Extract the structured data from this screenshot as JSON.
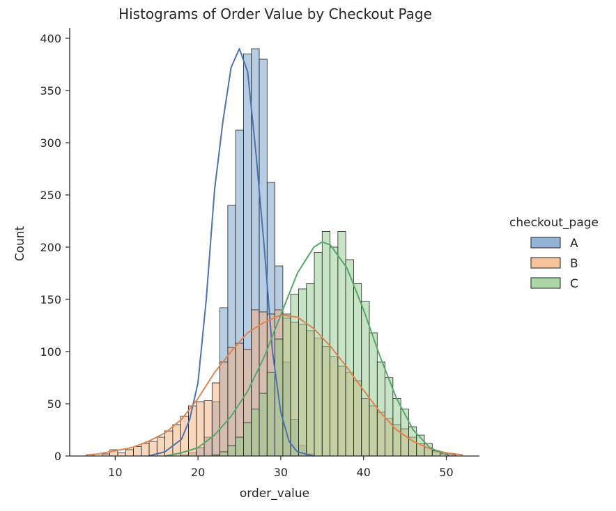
{
  "chart_data": {
    "type": "histogram",
    "title": "Histograms of Order Value by Checkout Page",
    "xlabel": "order_value",
    "ylabel": "Count",
    "xlim": [
      4.5,
      54
    ],
    "ylim": [
      0,
      410
    ],
    "x_ticks": [
      10,
      20,
      30,
      40,
      50
    ],
    "y_ticks": [
      0,
      50,
      100,
      150,
      200,
      250,
      300,
      350,
      400
    ],
    "bin_start": 6.5,
    "bin_width": 0.95,
    "grid": false,
    "legend": {
      "title": "checkout_page",
      "placement": "right",
      "entries": [
        "A",
        "B",
        "C"
      ]
    },
    "series": [
      {
        "name": "A",
        "color": "#4c72b0",
        "fill": "#6f9bc9",
        "opacity": 0.5,
        "counts": [
          0,
          0,
          0,
          0,
          0,
          0,
          0,
          0,
          0,
          0,
          0,
          0,
          1,
          3,
          8,
          18,
          52,
          142,
          240,
          312,
          385,
          390,
          380,
          262,
          182,
          90,
          35,
          10,
          2,
          0,
          0,
          0,
          0,
          0,
          0,
          0,
          0,
          0,
          0,
          0,
          0,
          0,
          0,
          0,
          0,
          0,
          0,
          0
        ],
        "kde_x": [
          14,
          16,
          18,
          19,
          20,
          21,
          22,
          23,
          24,
          25,
          26,
          27,
          28,
          29,
          30,
          31,
          32,
          34
        ],
        "kde_y": [
          0,
          4,
          16,
          35,
          70,
          150,
          255,
          320,
          372,
          390,
          368,
          290,
          200,
          100,
          42,
          14,
          4,
          0
        ]
      },
      {
        "name": "B",
        "color": "#dd8452",
        "fill": "#f3b07a",
        "opacity": 0.5,
        "counts": [
          1,
          0,
          2,
          6,
          3,
          6,
          9,
          12,
          14,
          18,
          24,
          30,
          38,
          48,
          52,
          53,
          70,
          90,
          104,
          108,
          102,
          140,
          138,
          136,
          140,
          132,
          128,
          126,
          120,
          113,
          105,
          95,
          86,
          80,
          72,
          55,
          48,
          42,
          36,
          30,
          26,
          18,
          12,
          8,
          4,
          2,
          1,
          0
        ],
        "kde_x": [
          6.5,
          8,
          10,
          12,
          14,
          16,
          18,
          20,
          22,
          24,
          26,
          28,
          30,
          32,
          34,
          36,
          38,
          40,
          42,
          44,
          46,
          48,
          50,
          52
        ],
        "kde_y": [
          1,
          2,
          5,
          8,
          14,
          22,
          35,
          55,
          80,
          100,
          118,
          128,
          135,
          133,
          122,
          105,
          85,
          63,
          42,
          25,
          14,
          7,
          3,
          1
        ]
      },
      {
        "name": "C",
        "color": "#55a868",
        "fill": "#8fc98a",
        "opacity": 0.5,
        "counts": [
          0,
          0,
          0,
          0,
          0,
          0,
          0,
          0,
          0,
          0,
          0,
          0,
          0,
          0,
          0,
          0,
          1,
          4,
          10,
          18,
          32,
          45,
          60,
          80,
          112,
          136,
          155,
          160,
          165,
          195,
          215,
          200,
          215,
          188,
          165,
          148,
          118,
          90,
          75,
          55,
          45,
          28,
          20,
          12,
          5,
          0,
          0,
          0
        ],
        "kde_x": [
          16,
          18,
          20,
          22,
          24,
          26,
          28,
          30,
          32,
          34,
          35,
          36,
          38,
          40,
          42,
          44,
          46,
          48,
          50
        ],
        "kde_y": [
          0,
          3,
          8,
          20,
          38,
          62,
          95,
          135,
          175,
          200,
          205,
          202,
          180,
          140,
          95,
          55,
          25,
          8,
          1
        ]
      }
    ]
  }
}
